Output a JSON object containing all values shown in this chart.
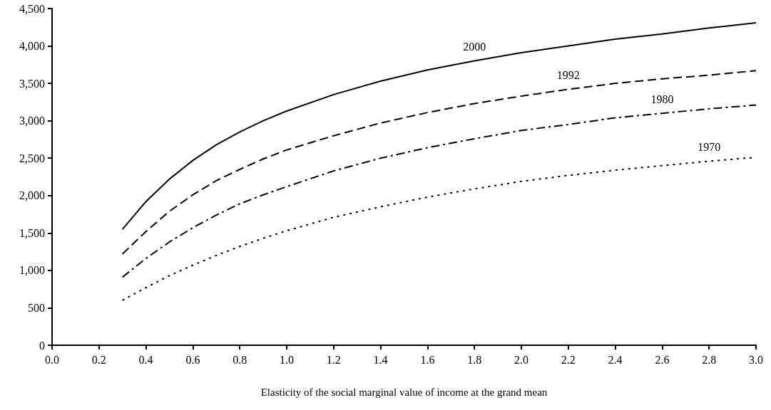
{
  "chart_data": {
    "type": "line",
    "xlabel": "Elasticity of the social marginal value of income at the grand mean",
    "xlim": [
      0,
      3
    ],
    "xticks": [
      {
        "value": 0,
        "label": "0.0"
      },
      {
        "value": 0.2,
        "label": "0.2"
      },
      {
        "value": 0.4,
        "label": "0.4"
      },
      {
        "value": 0.6,
        "label": "0.6"
      },
      {
        "value": 0.8,
        "label": "0.8"
      },
      {
        "value": 1,
        "label": "1.0"
      },
      {
        "value": 1.2,
        "label": "1.2"
      },
      {
        "value": 1.4,
        "label": "1.4"
      },
      {
        "value": 1.6,
        "label": "1.6"
      },
      {
        "value": 1.8,
        "label": "1.8"
      },
      {
        "value": 2,
        "label": "2.0"
      },
      {
        "value": 2.2,
        "label": "2.2"
      },
      {
        "value": 2.4,
        "label": "2.4"
      },
      {
        "value": 2.6,
        "label": "2.6"
      },
      {
        "value": 2.8,
        "label": "2.8"
      },
      {
        "value": 3,
        "label": "3.0"
      }
    ],
    "ylim": [
      0,
      4500
    ],
    "yticks": [
      0,
      500,
      {
        "value": 1000,
        "label": "1,000"
      },
      {
        "value": 1500,
        "label": "1,500"
      },
      {
        "value": 2000,
        "label": "2,000"
      },
      {
        "value": 2500,
        "label": "2,500"
      },
      {
        "value": 3000,
        "label": "3,000"
      },
      {
        "value": 3500,
        "label": "3,500"
      },
      {
        "value": 4000,
        "label": "4,000"
      },
      {
        "value": 4500,
        "label": "4,500"
      }
    ],
    "x": [
      0.3,
      0.4,
      0.5,
      0.6,
      0.7,
      0.8,
      0.9,
      1.0,
      1.2,
      1.4,
      1.6,
      1.8,
      2.0,
      2.2,
      2.4,
      2.6,
      2.8,
      3.0
    ],
    "series": [
      {
        "name": "2000",
        "color": "#000000",
        "line_style": "solid",
        "values": [
          1550,
          1920,
          2220,
          2470,
          2680,
          2850,
          3000,
          3130,
          3350,
          3530,
          3680,
          3800,
          3910,
          4000,
          4090,
          4160,
          4240,
          4310
        ]
      },
      {
        "name": "1992",
        "color": "#000000",
        "line_style": "dashed",
        "values": [
          1220,
          1520,
          1790,
          2010,
          2200,
          2350,
          2490,
          2610,
          2800,
          2970,
          3110,
          3230,
          3330,
          3420,
          3500,
          3560,
          3610,
          3670
        ]
      },
      {
        "name": "1980",
        "color": "#000000",
        "line_style": "dashdot",
        "values": [
          910,
          1160,
          1380,
          1570,
          1740,
          1890,
          2010,
          2120,
          2330,
          2500,
          2640,
          2760,
          2870,
          2950,
          3040,
          3100,
          3160,
          3210
        ]
      },
      {
        "name": "1970",
        "color": "#000000",
        "line_style": "dotted",
        "values": [
          600,
          770,
          930,
          1070,
          1200,
          1320,
          1430,
          1530,
          1710,
          1850,
          1980,
          2090,
          2190,
          2270,
          2340,
          2400,
          2460,
          2510
        ]
      }
    ],
    "grid": false,
    "marker": "none"
  }
}
